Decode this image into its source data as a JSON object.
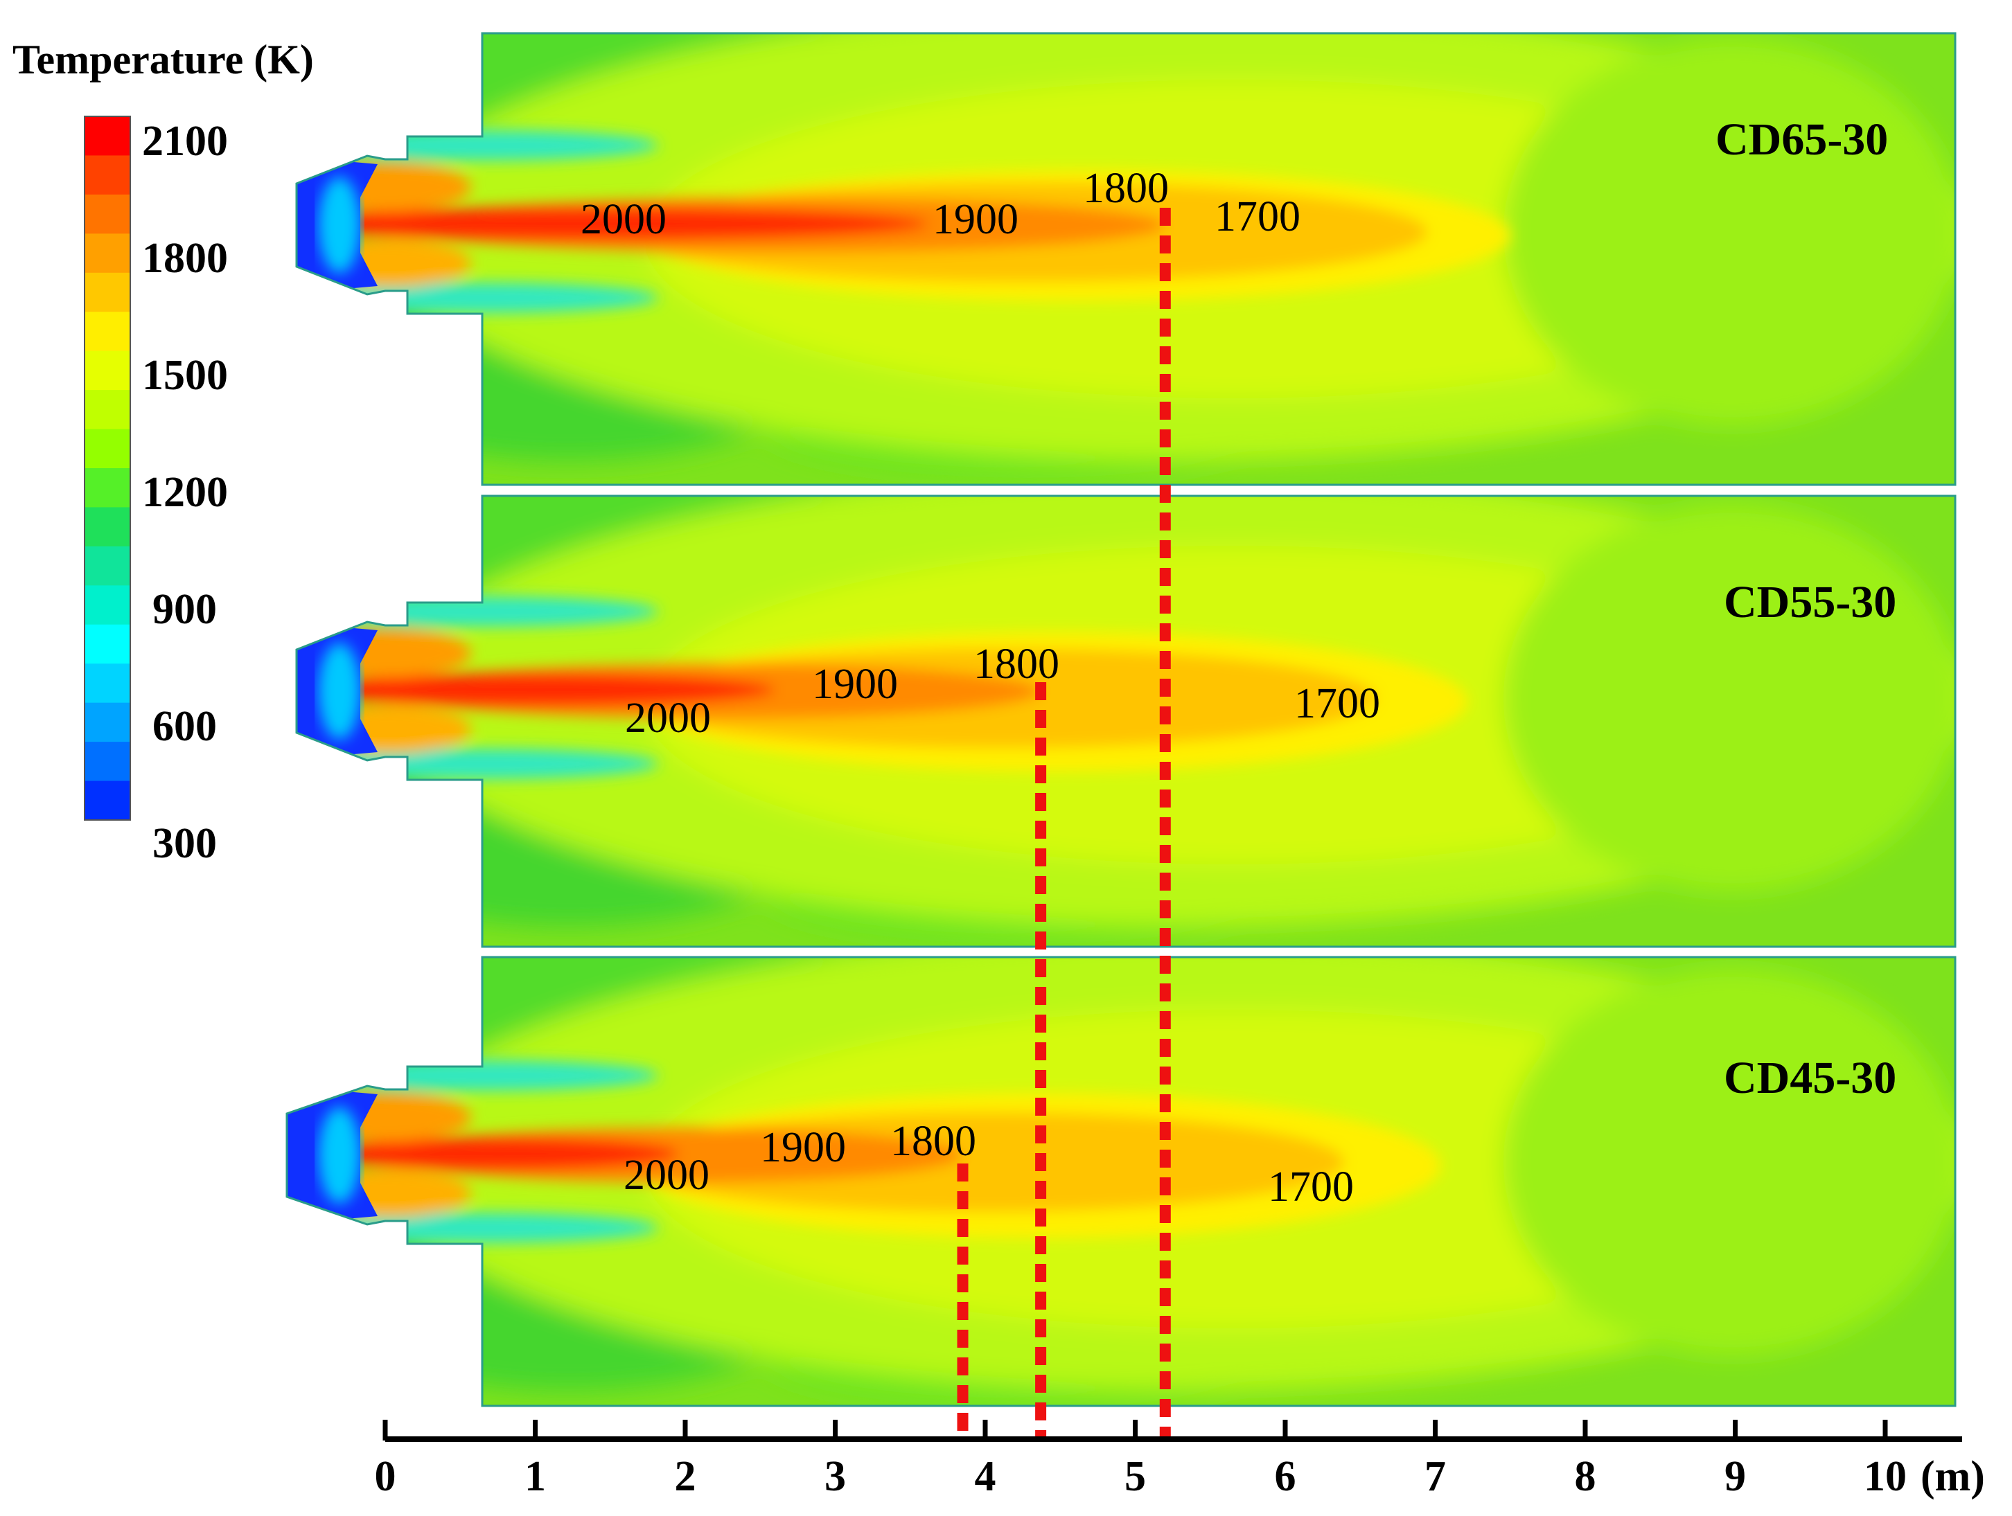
{
  "colorbar": {
    "title": "Temperature (K)",
    "ticks": [
      "2100",
      "1800",
      "1500",
      "1200",
      "900",
      "600",
      "300"
    ],
    "range": [
      300,
      2100
    ],
    "colors": [
      "#ff0000",
      "#ff4200",
      "#ff7400",
      "#ffa000",
      "#ffc800",
      "#ffee00",
      "#e6ff00",
      "#c0ff00",
      "#94ff00",
      "#55f028",
      "#1fe05a",
      "#10e49a",
      "#00f0cc",
      "#00ffff",
      "#00d4ff",
      "#00a4ff",
      "#0070ff",
      "#0030ff"
    ]
  },
  "panels": [
    {
      "name": "CD65-30",
      "contour_labels": [
        {
          "text": "2000"
        },
        {
          "text": "1900"
        },
        {
          "text": "1800"
        },
        {
          "text": "1700"
        }
      ],
      "flame_1800K_end_m": 5.2
    },
    {
      "name": "CD55-30",
      "contour_labels": [
        {
          "text": "1900"
        },
        {
          "text": "1800"
        },
        {
          "text": "2000"
        },
        {
          "text": "1700"
        }
      ],
      "flame_1800K_end_m": 4.37
    },
    {
      "name": "CD45-30",
      "contour_labels": [
        {
          "text": "1900"
        },
        {
          "text": "1800"
        },
        {
          "text": "2000"
        },
        {
          "text": "1700"
        }
      ],
      "flame_1800K_end_m": 3.85
    }
  ],
  "axis": {
    "ticks": [
      "0",
      "1",
      "2",
      "3",
      "4",
      "5",
      "6",
      "7",
      "8",
      "9",
      "10"
    ],
    "unit": "(m)",
    "range": [
      0,
      10
    ]
  },
  "colors": {
    "marker_line": "#ee1111",
    "background_field": "#8af018",
    "inlet": "#1030ff"
  }
}
